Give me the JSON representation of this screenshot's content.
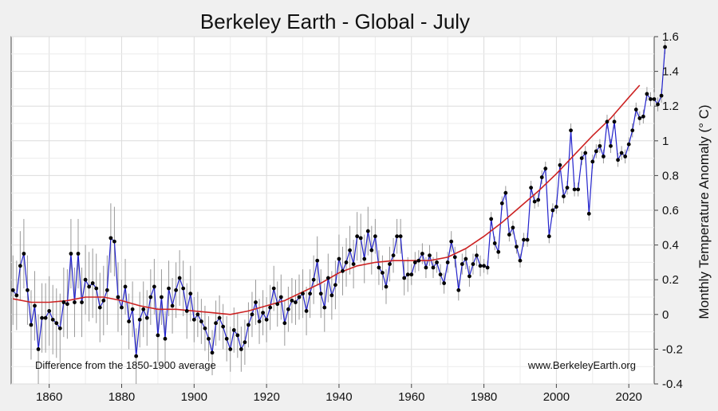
{
  "chart_data": {
    "type": "line",
    "title": "Berkeley Earth - Global - July",
    "xlabel": "",
    "ylabel": "Monthly Temperature Anomaly (° C)",
    "xlim": [
      1849.5,
      2027
    ],
    "ylim": [
      -0.4,
      1.6
    ],
    "xticks": [
      "1860",
      "1880",
      "1900",
      "1920",
      "1940",
      "1960",
      "1980",
      "2000",
      "2020"
    ],
    "yticks": [
      "-0.4",
      "-0.2",
      "0",
      "0.2",
      "0.4",
      "0.6",
      "0.8",
      "1",
      "1.2",
      "1.4",
      "1.6"
    ],
    "grid": true,
    "annotations": {
      "left": "Difference from the 1850-1900 average",
      "right": "www.BerkeleyEarth.org"
    },
    "series": [
      {
        "kind": "annual",
        "color": "#2222cc",
        "x_start": 1850,
        "values": [
          0.14,
          0.11,
          0.28,
          0.35,
          0.14,
          -0.06,
          0.05,
          -0.2,
          -0.02,
          -0.02,
          0.02,
          -0.03,
          -0.05,
          -0.08,
          0.07,
          0.06,
          0.35,
          0.07,
          0.35,
          0.07,
          0.2,
          0.16,
          0.18,
          0.15,
          0.04,
          0.08,
          0.14,
          0.44,
          0.42,
          0.1,
          0.04,
          0.16,
          -0.04,
          0.03,
          -0.24,
          -0.03,
          0.03,
          -0.02,
          0.1,
          0.16,
          -0.12,
          0.1,
          -0.14,
          0.15,
          0.05,
          0.14,
          0.21,
          0.15,
          0.02,
          0.12,
          -0.03,
          0.0,
          -0.04,
          -0.08,
          -0.14,
          -0.22,
          -0.05,
          -0.02,
          -0.07,
          -0.14,
          -0.2,
          -0.09,
          -0.12,
          -0.2,
          -0.16,
          -0.06,
          0.0,
          0.07,
          -0.04,
          0.01,
          -0.03,
          0.04,
          0.15,
          0.06,
          0.1,
          -0.05,
          0.03,
          0.08,
          0.07,
          0.1,
          0.12,
          0.02,
          0.12,
          0.2,
          0.31,
          0.12,
          0.04,
          0.21,
          0.11,
          0.17,
          0.32,
          0.25,
          0.3,
          0.37,
          0.29,
          0.45,
          0.44,
          0.32,
          0.48,
          0.37,
          0.45,
          0.27,
          0.24,
          0.16,
          0.29,
          0.34,
          0.45,
          0.45,
          0.21,
          0.23,
          0.23,
          0.3,
          0.31,
          0.35,
          0.27,
          0.34,
          0.27,
          0.3,
          0.23,
          0.18,
          0.3,
          0.42,
          0.33,
          0.14,
          0.29,
          0.32,
          0.22,
          0.29,
          0.34,
          0.28,
          0.28,
          0.27,
          0.55,
          0.41,
          0.36,
          0.64,
          0.7,
          0.46,
          0.5,
          0.39,
          0.31,
          0.43,
          0.43,
          0.73,
          0.65,
          0.66,
          0.79,
          0.84,
          0.45,
          0.6,
          0.62,
          0.86,
          0.68,
          0.73,
          1.06,
          0.72,
          0.72,
          0.9,
          0.93,
          0.58,
          0.88,
          0.94,
          0.97,
          0.91,
          1.11,
          0.97,
          1.11,
          0.89,
          0.93,
          0.91,
          0.98,
          1.06,
          1.18,
          1.13,
          1.14,
          1.27,
          1.24,
          1.24,
          1.21,
          1.26,
          1.54
        ]
      },
      {
        "kind": "smoothed",
        "color": "#cc2222",
        "x": [
          1850,
          1855,
          1860,
          1865,
          1870,
          1875,
          1880,
          1885,
          1890,
          1895,
          1900,
          1905,
          1910,
          1915,
          1920,
          1925,
          1930,
          1935,
          1940,
          1945,
          1950,
          1955,
          1960,
          1965,
          1970,
          1975,
          1980,
          1985,
          1990,
          1995,
          2000,
          2005,
          2010,
          2015,
          2020,
          2023
        ],
        "values": [
          0.09,
          0.07,
          0.07,
          0.08,
          0.1,
          0.1,
          0.08,
          0.05,
          0.03,
          0.03,
          0.02,
          0.01,
          0.0,
          0.02,
          0.05,
          0.08,
          0.13,
          0.18,
          0.24,
          0.28,
          0.3,
          0.31,
          0.31,
          0.31,
          0.33,
          0.38,
          0.45,
          0.53,
          0.62,
          0.71,
          0.81,
          0.92,
          1.03,
          1.13,
          1.25,
          1.32
        ]
      }
    ]
  }
}
